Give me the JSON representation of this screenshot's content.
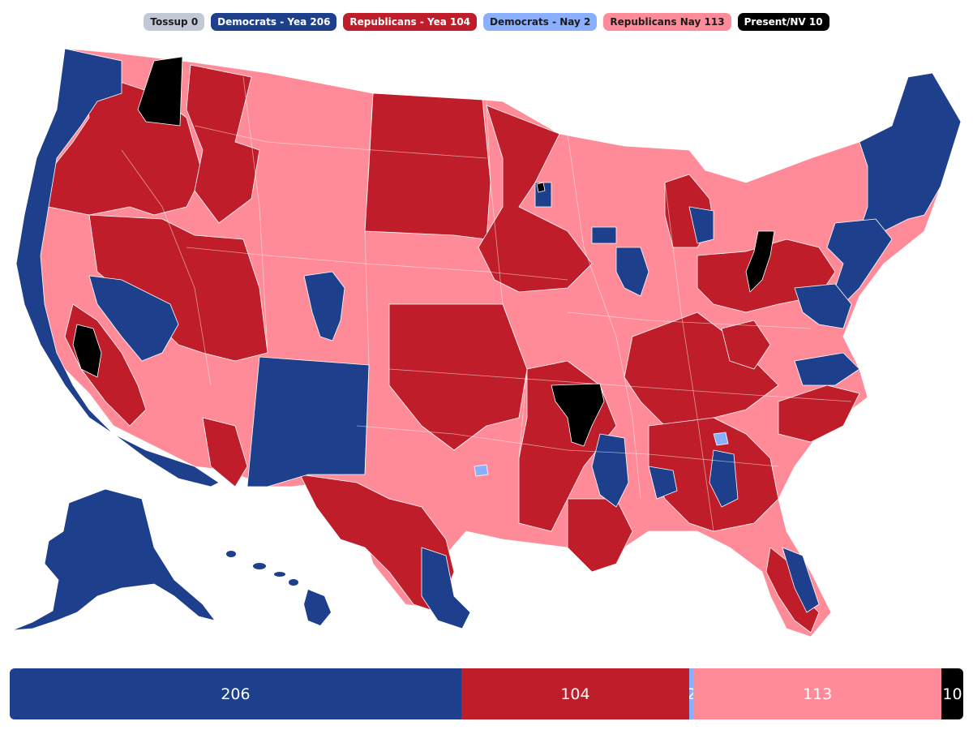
{
  "legend": {
    "tossup": {
      "label": "Tossup 0",
      "bg": "#c3c8d6",
      "fg": "#1c1c1c"
    },
    "dem_yea": {
      "label": "Democrats - Yea 206",
      "bg": "#1d3f8c",
      "fg": "#ffffff"
    },
    "rep_yea": {
      "label": "Republicans - Yea 104",
      "bg": "#bf1d29",
      "fg": "#ffffff"
    },
    "dem_nay": {
      "label": "Democrats - Nay 2",
      "bg": "#8aafff",
      "fg": "#1c1c1c"
    },
    "rep_nay": {
      "label": "Republicans Nay 113",
      "bg": "#ff8b98",
      "fg": "#1c1c1c"
    },
    "present": {
      "label": "Present/NV 10",
      "bg": "#000000",
      "fg": "#ffffff"
    }
  },
  "tally": {
    "dem_yea": {
      "value": 206,
      "label": "206",
      "color": "#1d3f8c"
    },
    "rep_yea": {
      "value": 104,
      "label": "104",
      "color": "#bf1d29"
    },
    "dem_nay": {
      "value": 2,
      "label": "2",
      "color": "#8aafff"
    },
    "rep_nay": {
      "value": 113,
      "label": "113",
      "color": "#ff8b98"
    },
    "present": {
      "value": 10,
      "label": "10",
      "color": "#000000"
    }
  },
  "colors": {
    "dem_yea": "#1d3f8c",
    "rep_yea": "#bf1d29",
    "dem_nay": "#8aafff",
    "rep_nay": "#ff8b98",
    "present": "#000000",
    "border": "#ffffff"
  }
}
